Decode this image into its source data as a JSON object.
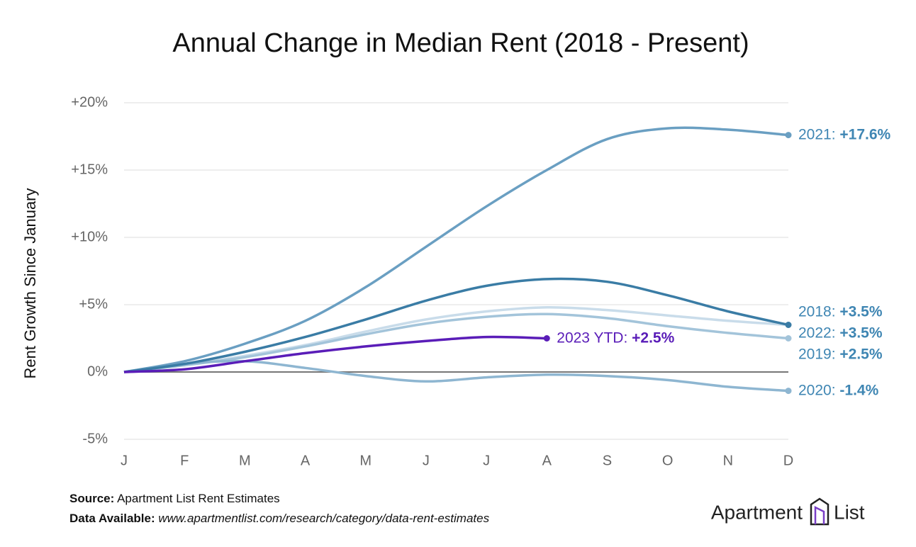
{
  "chart_data": {
    "type": "line",
    "title": "Annual Change in Median Rent (2018 - Present)",
    "y_label": "Rent Growth Since January",
    "categories": [
      "J",
      "F",
      "M",
      "A",
      "M",
      "J",
      "J",
      "A",
      "S",
      "O",
      "N",
      "D"
    ],
    "ylim": [
      -5,
      20
    ],
    "yticks": [
      {
        "value": -5,
        "label": "-5%"
      },
      {
        "value": 0,
        "label": "0%"
      },
      {
        "value": 5,
        "label": "+5%"
      },
      {
        "value": 10,
        "label": "+10%"
      },
      {
        "value": 15,
        "label": "+15%"
      },
      {
        "value": 20,
        "label": "+20%"
      }
    ],
    "grid": true,
    "series": [
      {
        "name": "2021:",
        "color": "#6a9fc2",
        "label_color": "#3f86b3",
        "values": [
          0,
          0.8,
          2.1,
          3.8,
          6.3,
          9.3,
          12.3,
          15.0,
          17.3,
          18.1,
          18.0,
          17.6
        ],
        "value_labels": [
          null,
          null,
          null,
          null,
          null,
          null,
          null,
          null,
          null,
          null,
          null,
          "+17.6%"
        ]
      },
      {
        "name": "2018:",
        "color": "#3a7ca5",
        "label_color": "#3f86b3",
        "values": [
          0,
          0.6,
          1.5,
          2.6,
          3.9,
          5.3,
          6.4,
          6.9,
          6.7,
          5.7,
          4.5,
          3.5
        ],
        "value_labels": [
          null,
          null,
          null,
          null,
          null,
          null,
          null,
          null,
          null,
          null,
          null,
          "+3.5%"
        ]
      },
      {
        "name": "2022:",
        "color": "#c9dcea",
        "label_color": "#3f86b3",
        "values": [
          0,
          0.5,
          1.2,
          2.0,
          3.0,
          3.9,
          4.5,
          4.8,
          4.6,
          4.2,
          3.8,
          3.5
        ],
        "value_labels": [
          null,
          null,
          null,
          null,
          null,
          null,
          null,
          null,
          null,
          null,
          null,
          "+3.5%"
        ]
      },
      {
        "name": "2019:",
        "color": "#a3c4da",
        "label_color": "#3f86b3",
        "values": [
          0,
          0.5,
          1.1,
          1.9,
          2.8,
          3.6,
          4.1,
          4.3,
          4.0,
          3.4,
          2.9,
          2.5
        ],
        "value_labels": [
          null,
          null,
          null,
          null,
          null,
          null,
          null,
          null,
          null,
          null,
          null,
          "+2.5%"
        ]
      },
      {
        "name": "2020:",
        "color": "#8eb6d1",
        "label_color": "#3f86b3",
        "values": [
          0,
          0.6,
          0.8,
          0.3,
          -0.3,
          -0.7,
          -0.4,
          -0.2,
          -0.3,
          -0.6,
          -1.1,
          -1.4
        ],
        "value_labels": [
          null,
          null,
          null,
          null,
          null,
          null,
          null,
          null,
          null,
          null,
          null,
          "-1.4%"
        ]
      },
      {
        "name": "2023 YTD:",
        "color": "#5a1db8",
        "label_color": "#5a1db8",
        "values": [
          0,
          0.2,
          0.8,
          1.4,
          1.9,
          2.3,
          2.6,
          2.5,
          null,
          null,
          null,
          null
        ],
        "value_labels": [
          null,
          null,
          null,
          null,
          null,
          null,
          null,
          "+2.5%",
          null,
          null,
          null,
          null
        ]
      }
    ],
    "source_label": "Source:",
    "source": "Apartment List Rent Estimates",
    "data_label": "Data Available:",
    "data_url": "www.apartmentlist.com/research/category/data-rent-estimates",
    "logo": "Apartment",
    "logo_2": "List"
  }
}
